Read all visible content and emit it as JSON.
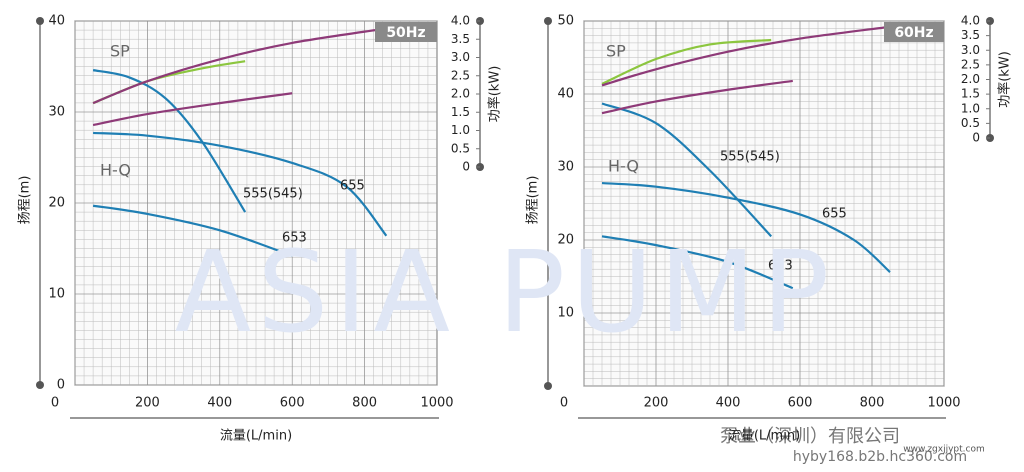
{
  "chart_data": [
    {
      "type": "line",
      "frequency": "50Hz",
      "annotations": [
        "SP",
        "H-Q"
      ],
      "xlabel": "流量(L/min)",
      "ylabel": "扬程(m)",
      "y2label": "功率(kW)",
      "xlim": [
        0,
        1000
      ],
      "xticks": [
        0,
        200,
        400,
        600,
        800,
        1000
      ],
      "ylim": [
        0,
        40
      ],
      "yticks": [
        0,
        10,
        20,
        30,
        40
      ],
      "y2lim": [
        0,
        4
      ],
      "y2ticks": [
        0,
        0.5,
        {
          "value": 1,
          "label": "1.0"
        },
        1.5,
        {
          "value": 2,
          "label": "2.0"
        },
        2.5,
        {
          "value": 3,
          "label": "3.0"
        },
        3.5,
        {
          "value": 4,
          "label": "4.0"
        }
      ],
      "grid": true,
      "series": [
        {
          "name": "555(545)",
          "color": "#1f7fb4",
          "x": [
            50,
            150,
            250,
            350,
            470
          ],
          "values": [
            34.6,
            33.8,
            31.5,
            26.8,
            19.0
          ]
        },
        {
          "name": "655",
          "color": "#1f7fb4",
          "x": [
            50,
            200,
            400,
            600,
            750,
            860
          ],
          "values": [
            27.7,
            27.4,
            26.3,
            24.4,
            21.8,
            16.4
          ]
        },
        {
          "name": "653",
          "color": "#1f7fb4",
          "x": [
            50,
            200,
            400,
            600
          ],
          "values": [
            19.7,
            18.8,
            17.0,
            14.2
          ]
        },
        {
          "color": "#8cc63f",
          "axis": "y2",
          "x": [
            50,
            200,
            350,
            470
          ],
          "values": [
            1.75,
            2.35,
            2.7,
            2.9
          ]
        },
        {
          "color": "#8e3a78",
          "axis": "y2",
          "x": [
            50,
            200,
            400,
            600,
            850
          ],
          "values": [
            1.75,
            2.35,
            2.95,
            3.4,
            3.78
          ]
        },
        {
          "color": "#8e3a78",
          "axis": "y2",
          "x": [
            50,
            200,
            400,
            600
          ],
          "values": [
            1.15,
            1.45,
            1.75,
            2.02
          ]
        }
      ]
    },
    {
      "type": "line",
      "frequency": "60Hz",
      "annotations": [
        "SP",
        "H-Q"
      ],
      "xlabel": "流量(L/min)",
      "ylabel": "扬程(m)",
      "y2label": "功率(kW)",
      "xlim": [
        0,
        1000
      ],
      "xticks": [
        0,
        200,
        400,
        600,
        800,
        1000
      ],
      "ylim": [
        0,
        50
      ],
      "yticks": [
        10,
        20,
        30,
        40,
        50
      ],
      "y2lim": [
        0,
        4
      ],
      "y2ticks": [
        0,
        0.5,
        {
          "value": 1,
          "label": "1.0"
        },
        1.5,
        {
          "value": 2,
          "label": "2.0"
        },
        2.5,
        {
          "value": 3,
          "label": "3.0"
        },
        3.5,
        {
          "value": 4,
          "label": "4.0"
        }
      ],
      "grid": true,
      "series": [
        {
          "name": "555(545)",
          "color": "#1f7fb4",
          "x": [
            50,
            200,
            350,
            520
          ],
          "values": [
            38.7,
            36.0,
            29.5,
            20.5
          ]
        },
        {
          "name": "655",
          "color": "#1f7fb4",
          "x": [
            50,
            200,
            400,
            600,
            750,
            850
          ],
          "values": [
            27.8,
            27.3,
            25.8,
            23.5,
            20.0,
            15.6
          ]
        },
        {
          "name": "653",
          "color": "#1f7fb4",
          "x": [
            50,
            200,
            400,
            580
          ],
          "values": [
            20.5,
            19.3,
            17.0,
            13.4
          ]
        },
        {
          "color": "#8cc63f",
          "axis": "y2",
          "x": [
            50,
            200,
            350,
            520
          ],
          "values": [
            1.85,
            2.7,
            3.2,
            3.35
          ]
        },
        {
          "color": "#8e3a78",
          "axis": "y2",
          "x": [
            50,
            200,
            400,
            600,
            850
          ],
          "values": [
            1.8,
            2.35,
            2.95,
            3.4,
            3.8
          ]
        },
        {
          "color": "#8e3a78",
          "axis": "y2",
          "x": [
            50,
            200,
            400,
            580
          ],
          "values": [
            0.85,
            1.25,
            1.65,
            1.95
          ]
        }
      ]
    }
  ],
  "watermark": "ASIA PUMP",
  "footer": [
    "泵业（深圳）有限公司",
    "hyby168.b2b.hc360.com",
    "www.zgxjjypt.com"
  ]
}
